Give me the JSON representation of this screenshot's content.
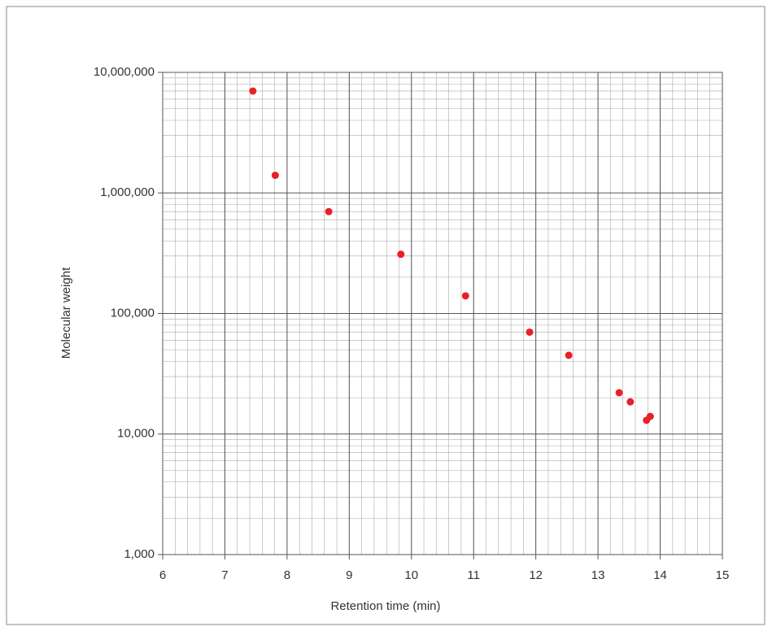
{
  "chart_data": {
    "type": "scatter",
    "x_label": "Retention time (min)",
    "y_label": "Molecular weight",
    "x": [
      7.45,
      7.81,
      8.67,
      9.83,
      10.87,
      11.9,
      12.53,
      13.34,
      13.52,
      13.78,
      13.84
    ],
    "values": [
      7000000,
      1400000,
      700000,
      310000,
      140000,
      70000,
      45000,
      22000,
      18500,
      13000,
      14000
    ],
    "color": "#e8202a",
    "xlim": [
      6,
      15
    ],
    "xticks": [
      6,
      7,
      8,
      9,
      10,
      11,
      12,
      13,
      14,
      15
    ],
    "ylim": [
      1000,
      10000000
    ],
    "yticks": [
      {
        "value": 1000,
        "label": "1,000"
      },
      {
        "value": 10000,
        "label": "10,000"
      },
      {
        "value": 100000,
        "label": "100,000"
      },
      {
        "value": 1000000,
        "label": "1,000,000"
      },
      {
        "value": 10000000,
        "label": "10,000,000"
      }
    ],
    "y_log": true,
    "grid": true
  }
}
